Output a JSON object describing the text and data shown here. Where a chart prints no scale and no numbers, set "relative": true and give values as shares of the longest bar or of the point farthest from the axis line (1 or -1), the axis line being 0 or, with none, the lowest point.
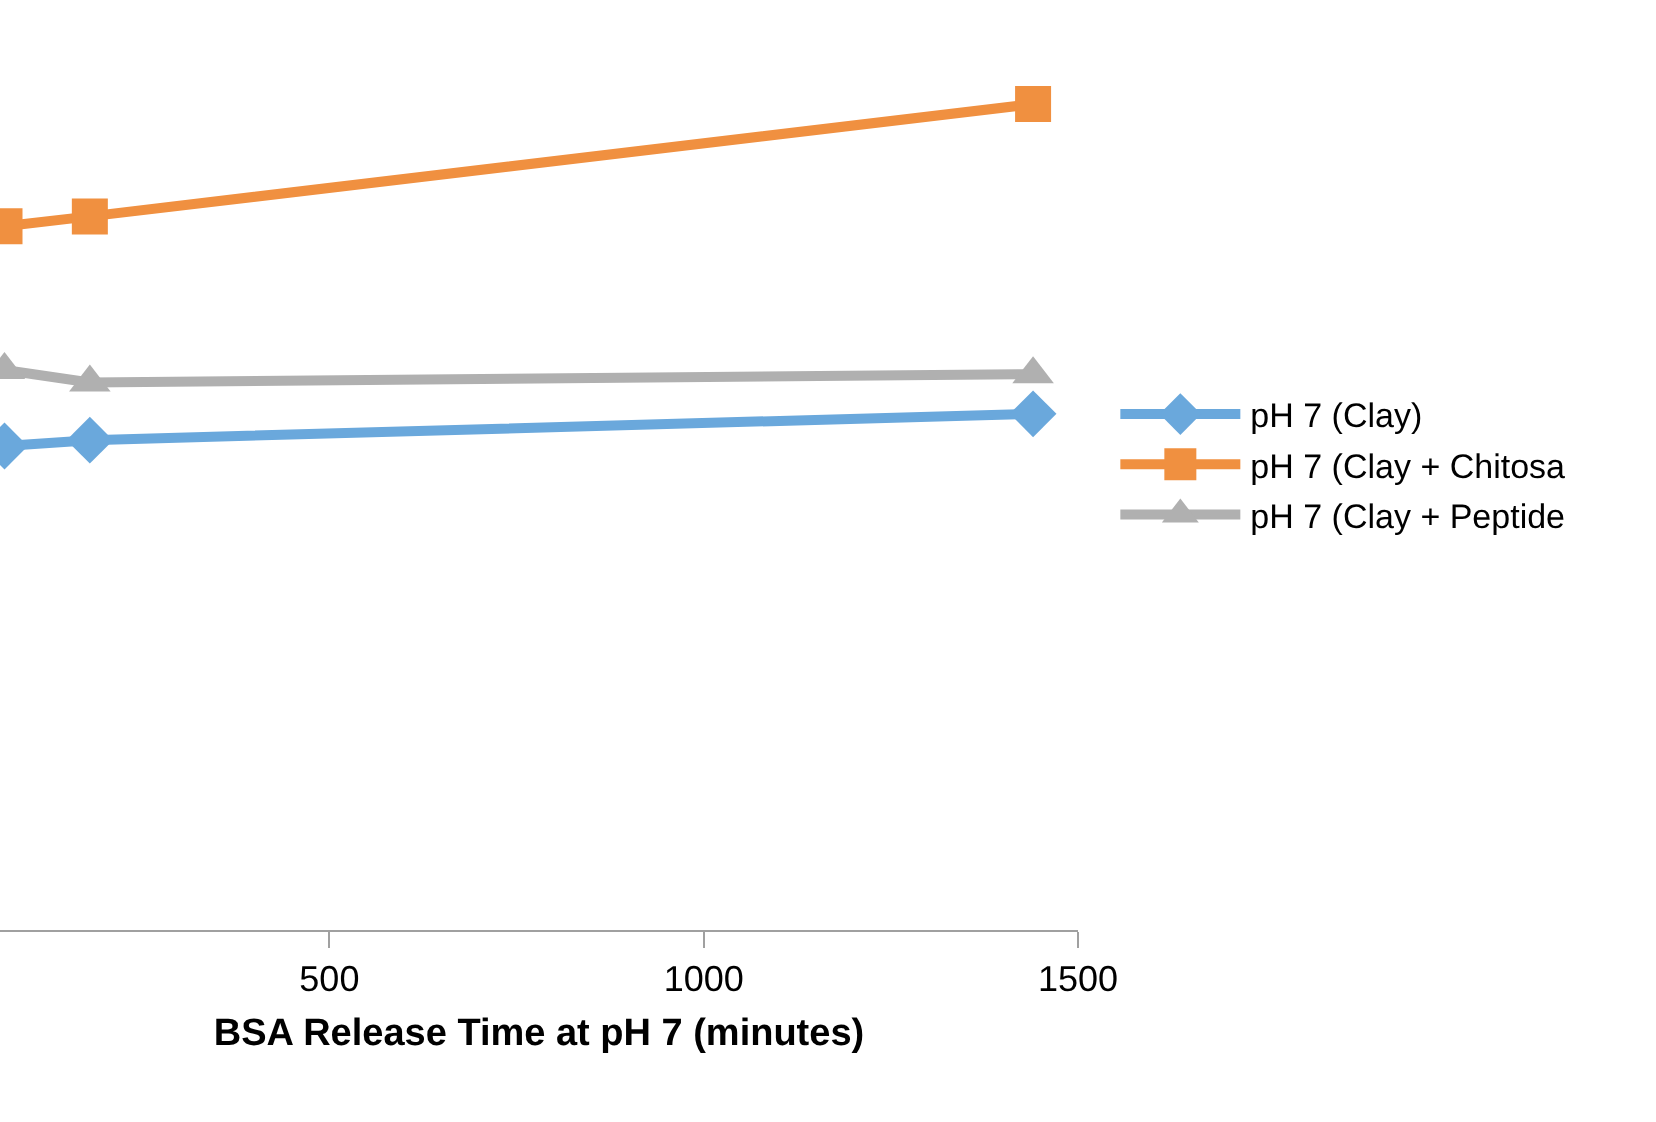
{
  "chart_data": {
    "type": "line",
    "xlabel": "BSA Release Time at pH 7 (minutes)",
    "relative": true,
    "x": [
      66,
      180,
      1440
    ],
    "xlim": [
      60,
      1500
    ],
    "xticks": [
      500,
      1000,
      1500
    ],
    "series": [
      {
        "name": "pH 7 (Clay)",
        "color": "#6aa8dc",
        "marker": "diamond",
        "values": [
          0.586,
          0.593,
          0.625
        ]
      },
      {
        "name": "pH 7 (Clay + Chitosa",
        "color": "#f09040",
        "marker": "square",
        "values": [
          0.852,
          0.864,
          1
        ]
      },
      {
        "name": "pH 7 (Clay + Peptide",
        "color": "#b0b0b0",
        "marker": "triangle",
        "values": [
          0.678,
          0.663,
          0.673
        ]
      }
    ],
    "line_style": "solid",
    "legend": "right"
  }
}
